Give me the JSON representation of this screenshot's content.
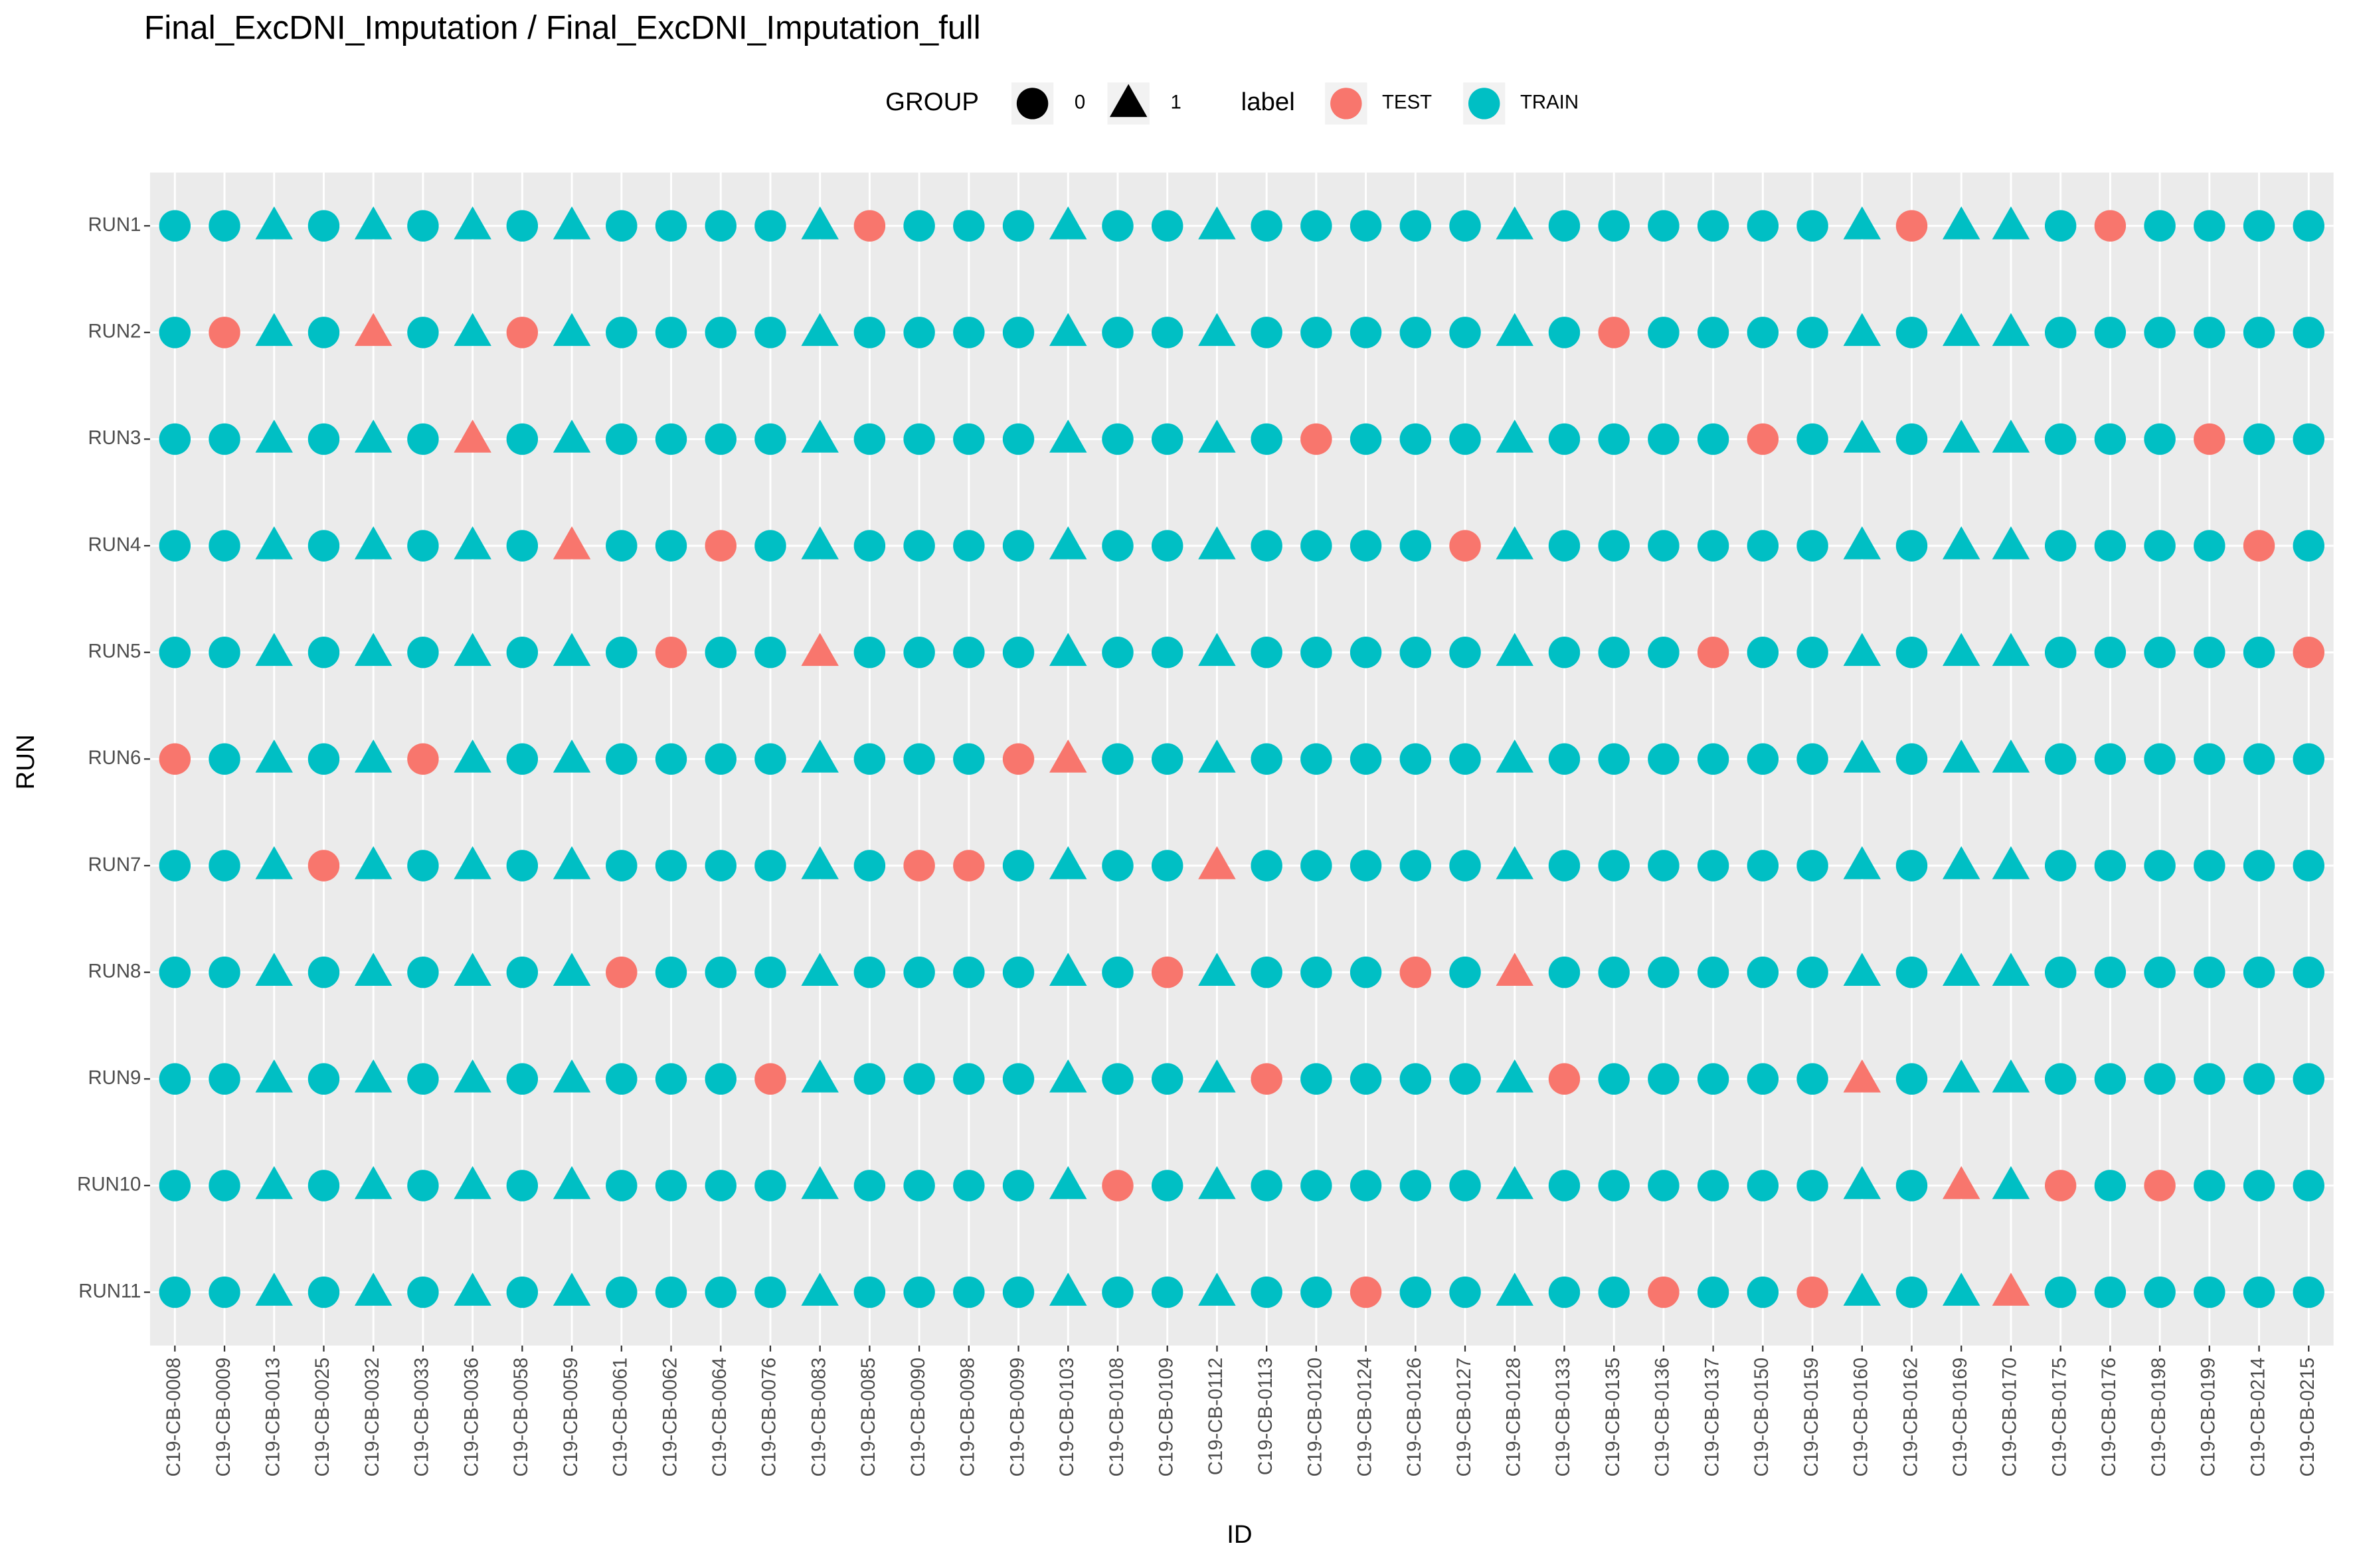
{
  "chart_data": {
    "type": "dot-matrix",
    "title": "Final_ExcDNI_Imputation / Final_ExcDNI_Imputation_full",
    "x_label": "ID",
    "y_label": "RUN",
    "x": [
      "C19-CB-0008",
      "C19-CB-0009",
      "C19-CB-0013",
      "C19-CB-0025",
      "C19-CB-0032",
      "C19-CB-0033",
      "C19-CB-0036",
      "C19-CB-0058",
      "C19-CB-0059",
      "C19-CB-0061",
      "C19-CB-0062",
      "C19-CB-0064",
      "C19-CB-0076",
      "C19-CB-0083",
      "C19-CB-0085",
      "C19-CB-0090",
      "C19-CB-0098",
      "C19-CB-0099",
      "C19-CB-0103",
      "C19-CB-0108",
      "C19-CB-0109",
      "C19-CB-0112",
      "C19-CB-0113",
      "C19-CB-0120",
      "C19-CB-0124",
      "C19-CB-0126",
      "C19-CB-0127",
      "C19-CB-0128",
      "C19-CB-0133",
      "C19-CB-0135",
      "C19-CB-0136",
      "C19-CB-0137",
      "C19-CB-0150",
      "C19-CB-0159",
      "C19-CB-0160",
      "C19-CB-0162",
      "C19-CB-0169",
      "C19-CB-0170",
      "C19-CB-0175",
      "C19-CB-0176",
      "C19-CB-0198",
      "C19-CB-0199",
      "C19-CB-0214",
      "C19-CB-0215"
    ],
    "y": [
      "RUN1",
      "RUN2",
      "RUN3",
      "RUN4",
      "RUN5",
      "RUN6",
      "RUN7",
      "RUN8",
      "RUN9",
      "RUN10",
      "RUN11"
    ],
    "group": [
      0,
      0,
      1,
      0,
      1,
      0,
      1,
      0,
      1,
      0,
      0,
      0,
      0,
      1,
      0,
      0,
      0,
      0,
      1,
      0,
      0,
      1,
      0,
      0,
      0,
      0,
      0,
      1,
      0,
      0,
      0,
      0,
      0,
      0,
      1,
      0,
      1,
      1,
      0,
      0,
      0,
      0,
      0,
      0
    ],
    "legend": {
      "shape_title": "GROUP",
      "shape_values": [
        0,
        1
      ],
      "color_title": "label",
      "colors": [
        {
          "name": "TEST",
          "color": "#F8766D"
        },
        {
          "name": "TRAIN",
          "color": "#00BFC4"
        }
      ]
    },
    "label": [
      [
        "TRAIN",
        "TRAIN",
        "TRAIN",
        "TRAIN",
        "TRAIN",
        "TRAIN",
        "TRAIN",
        "TRAIN",
        "TRAIN",
        "TRAIN",
        "TRAIN",
        "TRAIN",
        "TRAIN",
        "TRAIN",
        "TEST",
        "TRAIN",
        "TRAIN",
        "TRAIN",
        "TRAIN",
        "TRAIN",
        "TRAIN",
        "TRAIN",
        "TRAIN",
        "TRAIN",
        "TRAIN",
        "TRAIN",
        "TRAIN",
        "TRAIN",
        "TRAIN",
        "TRAIN",
        "TRAIN",
        "TRAIN",
        "TRAIN",
        "TRAIN",
        "TRAIN",
        "TEST",
        "TRAIN",
        "TRAIN",
        "TRAIN",
        "TEST",
        "TRAIN",
        "TRAIN",
        "TRAIN",
        "TRAIN"
      ],
      [
        "TRAIN",
        "TEST",
        "TRAIN",
        "TRAIN",
        "TEST",
        "TRAIN",
        "TRAIN",
        "TEST",
        "TRAIN",
        "TRAIN",
        "TRAIN",
        "TRAIN",
        "TRAIN",
        "TRAIN",
        "TRAIN",
        "TRAIN",
        "TRAIN",
        "TRAIN",
        "TRAIN",
        "TRAIN",
        "TRAIN",
        "TRAIN",
        "TRAIN",
        "TRAIN",
        "TRAIN",
        "TRAIN",
        "TRAIN",
        "TRAIN",
        "TRAIN",
        "TEST",
        "TRAIN",
        "TRAIN",
        "TRAIN",
        "TRAIN",
        "TRAIN",
        "TRAIN",
        "TRAIN",
        "TRAIN",
        "TRAIN",
        "TRAIN",
        "TRAIN",
        "TRAIN",
        "TRAIN",
        "TRAIN"
      ],
      [
        "TRAIN",
        "TRAIN",
        "TRAIN",
        "TRAIN",
        "TRAIN",
        "TRAIN",
        "TEST",
        "TRAIN",
        "TRAIN",
        "TRAIN",
        "TRAIN",
        "TRAIN",
        "TRAIN",
        "TRAIN",
        "TRAIN",
        "TRAIN",
        "TRAIN",
        "TRAIN",
        "TRAIN",
        "TRAIN",
        "TRAIN",
        "TRAIN",
        "TRAIN",
        "TEST",
        "TRAIN",
        "TRAIN",
        "TRAIN",
        "TRAIN",
        "TRAIN",
        "TRAIN",
        "TRAIN",
        "TRAIN",
        "TEST",
        "TRAIN",
        "TRAIN",
        "TRAIN",
        "TRAIN",
        "TRAIN",
        "TRAIN",
        "TRAIN",
        "TRAIN",
        "TEST",
        "TRAIN",
        "TRAIN"
      ],
      [
        "TRAIN",
        "TRAIN",
        "TRAIN",
        "TRAIN",
        "TRAIN",
        "TRAIN",
        "TRAIN",
        "TRAIN",
        "TEST",
        "TRAIN",
        "TRAIN",
        "TEST",
        "TRAIN",
        "TRAIN",
        "TRAIN",
        "TRAIN",
        "TRAIN",
        "TRAIN",
        "TRAIN",
        "TRAIN",
        "TRAIN",
        "TRAIN",
        "TRAIN",
        "TRAIN",
        "TRAIN",
        "TRAIN",
        "TEST",
        "TRAIN",
        "TRAIN",
        "TRAIN",
        "TRAIN",
        "TRAIN",
        "TRAIN",
        "TRAIN",
        "TRAIN",
        "TRAIN",
        "TRAIN",
        "TRAIN",
        "TRAIN",
        "TRAIN",
        "TRAIN",
        "TRAIN",
        "TEST",
        "TRAIN"
      ],
      [
        "TRAIN",
        "TRAIN",
        "TRAIN",
        "TRAIN",
        "TRAIN",
        "TRAIN",
        "TRAIN",
        "TRAIN",
        "TRAIN",
        "TRAIN",
        "TEST",
        "TRAIN",
        "TRAIN",
        "TEST",
        "TRAIN",
        "TRAIN",
        "TRAIN",
        "TRAIN",
        "TRAIN",
        "TRAIN",
        "TRAIN",
        "TRAIN",
        "TRAIN",
        "TRAIN",
        "TRAIN",
        "TRAIN",
        "TRAIN",
        "TRAIN",
        "TRAIN",
        "TRAIN",
        "TRAIN",
        "TEST",
        "TRAIN",
        "TRAIN",
        "TRAIN",
        "TRAIN",
        "TRAIN",
        "TRAIN",
        "TRAIN",
        "TRAIN",
        "TRAIN",
        "TRAIN",
        "TRAIN",
        "TEST"
      ],
      [
        "TEST",
        "TRAIN",
        "TRAIN",
        "TRAIN",
        "TRAIN",
        "TEST",
        "TRAIN",
        "TRAIN",
        "TRAIN",
        "TRAIN",
        "TRAIN",
        "TRAIN",
        "TRAIN",
        "TRAIN",
        "TRAIN",
        "TRAIN",
        "TRAIN",
        "TEST",
        "TEST",
        "TRAIN",
        "TRAIN",
        "TRAIN",
        "TRAIN",
        "TRAIN",
        "TRAIN",
        "TRAIN",
        "TRAIN",
        "TRAIN",
        "TRAIN",
        "TRAIN",
        "TRAIN",
        "TRAIN",
        "TRAIN",
        "TRAIN",
        "TRAIN",
        "TRAIN",
        "TRAIN",
        "TRAIN",
        "TRAIN",
        "TRAIN",
        "TRAIN",
        "TRAIN",
        "TRAIN",
        "TRAIN"
      ],
      [
        "TRAIN",
        "TRAIN",
        "TRAIN",
        "TEST",
        "TRAIN",
        "TRAIN",
        "TRAIN",
        "TRAIN",
        "TRAIN",
        "TRAIN",
        "TRAIN",
        "TRAIN",
        "TRAIN",
        "TRAIN",
        "TRAIN",
        "TEST",
        "TEST",
        "TRAIN",
        "TRAIN",
        "TRAIN",
        "TRAIN",
        "TEST",
        "TRAIN",
        "TRAIN",
        "TRAIN",
        "TRAIN",
        "TRAIN",
        "TRAIN",
        "TRAIN",
        "TRAIN",
        "TRAIN",
        "TRAIN",
        "TRAIN",
        "TRAIN",
        "TRAIN",
        "TRAIN",
        "TRAIN",
        "TRAIN",
        "TRAIN",
        "TRAIN",
        "TRAIN",
        "TRAIN",
        "TRAIN",
        "TRAIN"
      ],
      [
        "TRAIN",
        "TRAIN",
        "TRAIN",
        "TRAIN",
        "TRAIN",
        "TRAIN",
        "TRAIN",
        "TRAIN",
        "TRAIN",
        "TEST",
        "TRAIN",
        "TRAIN",
        "TRAIN",
        "TRAIN",
        "TRAIN",
        "TRAIN",
        "TRAIN",
        "TRAIN",
        "TRAIN",
        "TRAIN",
        "TEST",
        "TRAIN",
        "TRAIN",
        "TRAIN",
        "TRAIN",
        "TEST",
        "TRAIN",
        "TEST",
        "TRAIN",
        "TRAIN",
        "TRAIN",
        "TRAIN",
        "TRAIN",
        "TRAIN",
        "TRAIN",
        "TRAIN",
        "TRAIN",
        "TRAIN",
        "TRAIN",
        "TRAIN",
        "TRAIN",
        "TRAIN",
        "TRAIN",
        "TRAIN"
      ],
      [
        "TRAIN",
        "TRAIN",
        "TRAIN",
        "TRAIN",
        "TRAIN",
        "TRAIN",
        "TRAIN",
        "TRAIN",
        "TRAIN",
        "TRAIN",
        "TRAIN",
        "TRAIN",
        "TEST",
        "TRAIN",
        "TRAIN",
        "TRAIN",
        "TRAIN",
        "TRAIN",
        "TRAIN",
        "TRAIN",
        "TRAIN",
        "TRAIN",
        "TEST",
        "TRAIN",
        "TRAIN",
        "TRAIN",
        "TRAIN",
        "TRAIN",
        "TEST",
        "TRAIN",
        "TRAIN",
        "TRAIN",
        "TRAIN",
        "TRAIN",
        "TEST",
        "TRAIN",
        "TRAIN",
        "TRAIN",
        "TRAIN",
        "TRAIN",
        "TRAIN",
        "TRAIN",
        "TRAIN",
        "TRAIN"
      ],
      [
        "TRAIN",
        "TRAIN",
        "TRAIN",
        "TRAIN",
        "TRAIN",
        "TRAIN",
        "TRAIN",
        "TRAIN",
        "TRAIN",
        "TRAIN",
        "TRAIN",
        "TRAIN",
        "TRAIN",
        "TRAIN",
        "TRAIN",
        "TRAIN",
        "TRAIN",
        "TRAIN",
        "TRAIN",
        "TEST",
        "TRAIN",
        "TRAIN",
        "TRAIN",
        "TRAIN",
        "TRAIN",
        "TRAIN",
        "TRAIN",
        "TRAIN",
        "TRAIN",
        "TRAIN",
        "TRAIN",
        "TRAIN",
        "TRAIN",
        "TRAIN",
        "TRAIN",
        "TRAIN",
        "TEST",
        "TRAIN",
        "TEST",
        "TRAIN",
        "TEST",
        "TRAIN",
        "TRAIN",
        "TRAIN"
      ],
      [
        "TRAIN",
        "TRAIN",
        "TRAIN",
        "TRAIN",
        "TRAIN",
        "TRAIN",
        "TRAIN",
        "TRAIN",
        "TRAIN",
        "TRAIN",
        "TRAIN",
        "TRAIN",
        "TRAIN",
        "TRAIN",
        "TRAIN",
        "TRAIN",
        "TRAIN",
        "TRAIN",
        "TRAIN",
        "TRAIN",
        "TRAIN",
        "TRAIN",
        "TRAIN",
        "TRAIN",
        "TEST",
        "TRAIN",
        "TRAIN",
        "TRAIN",
        "TRAIN",
        "TRAIN",
        "TEST",
        "TRAIN",
        "TRAIN",
        "TEST",
        "TRAIN",
        "TRAIN",
        "TRAIN",
        "TEST",
        "TRAIN",
        "TRAIN",
        "TRAIN",
        "TRAIN",
        "TRAIN",
        "TRAIN"
      ]
    ],
    "grid": true
  }
}
